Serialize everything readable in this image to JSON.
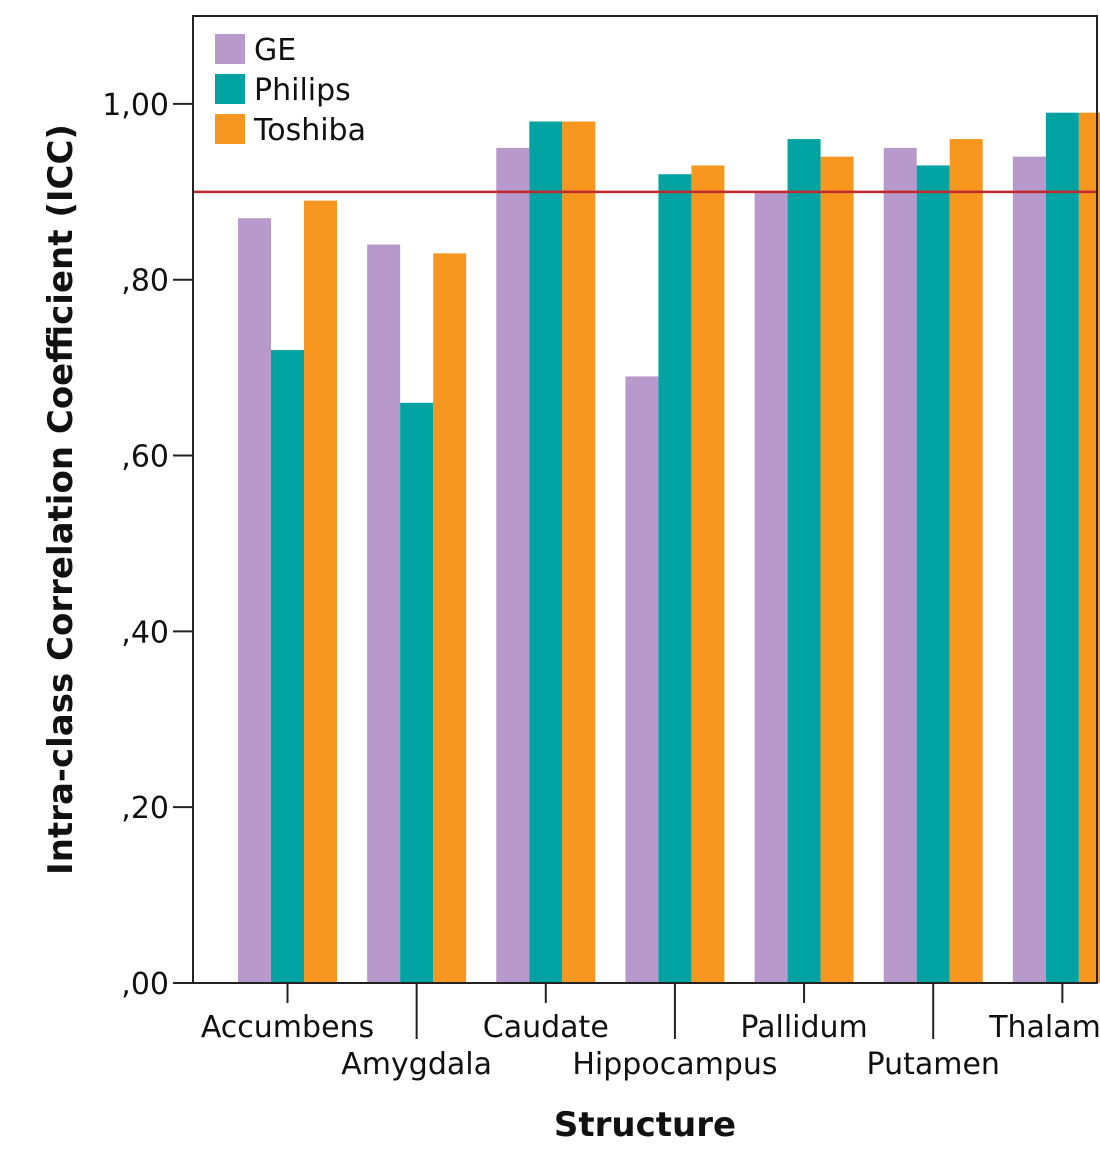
{
  "chart_data": {
    "type": "bar",
    "title": "",
    "xlabel": "Structure",
    "ylabel": "Intra-class Correlation Coefficient (ICC)",
    "categories": [
      "Accumbens",
      "Amygdala",
      "Caudate",
      "Hippocampus",
      "Pallidum",
      "Putamen",
      "Thalamus"
    ],
    "series": [
      {
        "name": "GE",
        "color": "#b79acb",
        "values": [
          0.87,
          0.84,
          0.95,
          0.69,
          0.9,
          0.95,
          0.94
        ]
      },
      {
        "name": "Philips",
        "color": "#00a3a1",
        "values": [
          0.72,
          0.66,
          0.98,
          0.92,
          0.96,
          0.93,
          0.99
        ]
      },
      {
        "name": "Toshiba",
        "color": "#f7971f",
        "values": [
          0.89,
          0.83,
          0.98,
          0.93,
          0.94,
          0.96,
          0.99
        ]
      }
    ],
    "ylim": [
      0,
      1.1
    ],
    "yticks": [
      0,
      0.2,
      0.4,
      0.6,
      0.8,
      1.0
    ],
    "ytick_labels": [
      ",00",
      ",20",
      ",40",
      ",60",
      ",80",
      "1,00"
    ],
    "reference_line": {
      "value": 0.9,
      "color": "#c0282d"
    },
    "legend_position": "top-left",
    "grid": false
  }
}
